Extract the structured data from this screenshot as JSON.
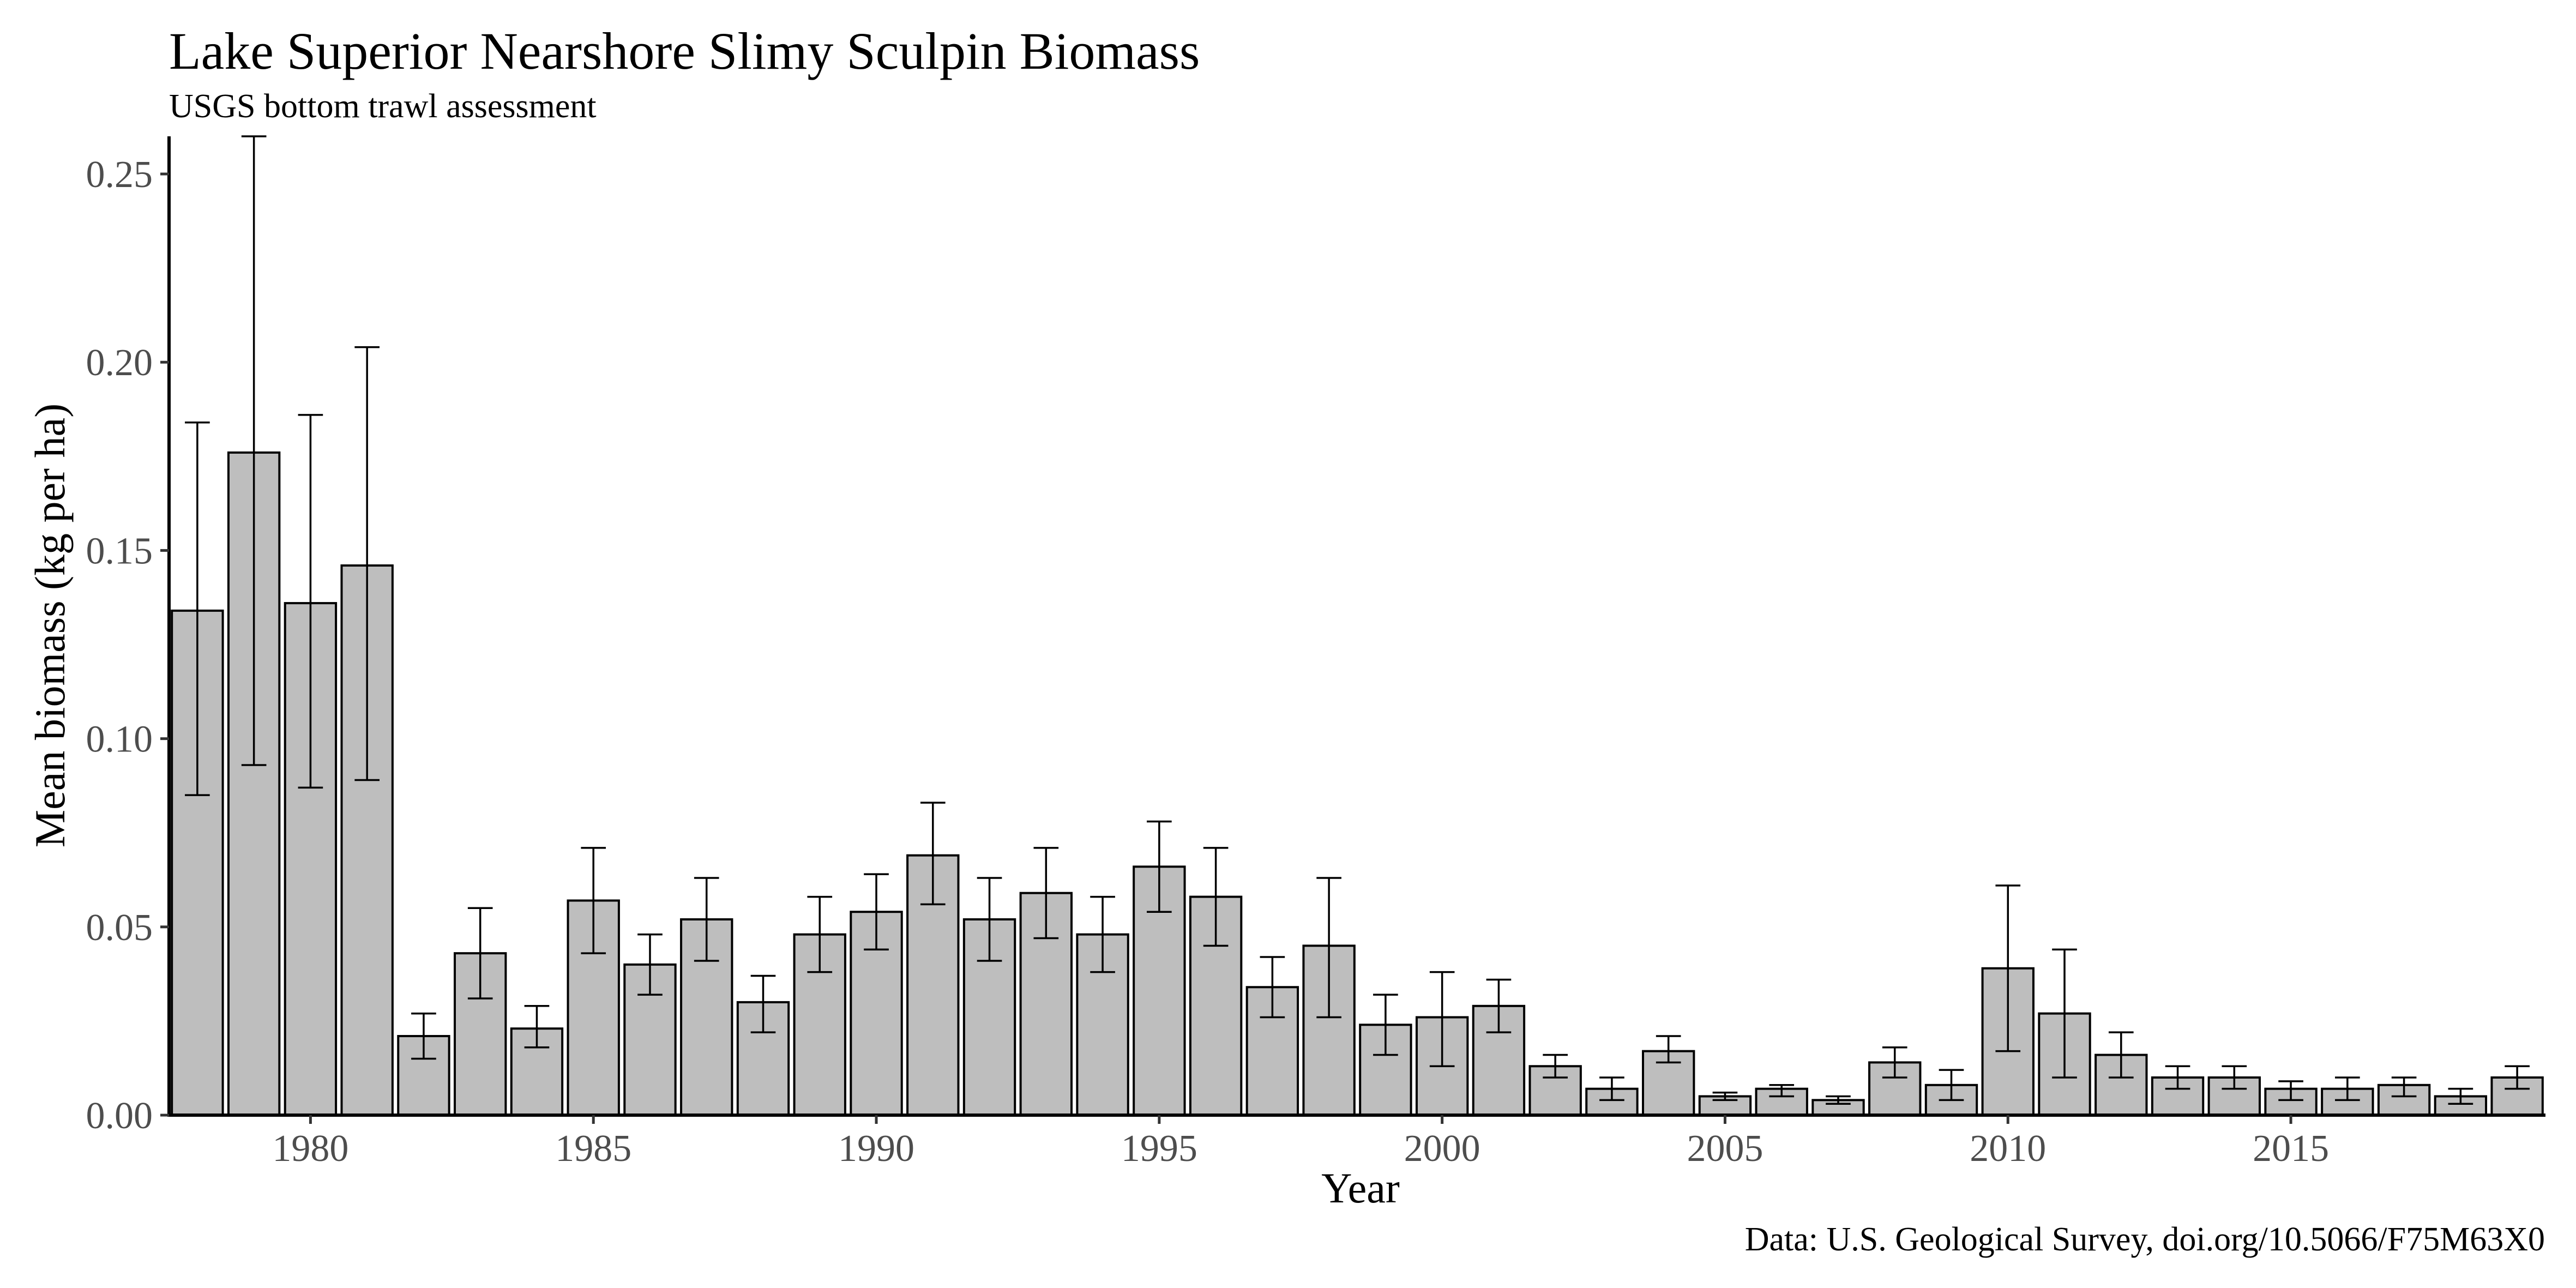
{
  "chart_data": {
    "type": "bar",
    "title": "Lake Superior Nearshore Slimy Sculpin Biomass",
    "subtitle": "USGS bottom trawl assessment",
    "xlabel": "Year",
    "ylabel": "Mean biomass (kg per ha)",
    "caption": "Data: U.S. Geological Survey, doi.org/10.5066/F75M63X0",
    "ylim": [
      0,
      0.26
    ],
    "y_ticks": [
      0.0,
      0.05,
      0.1,
      0.15,
      0.2,
      0.25
    ],
    "y_tick_labels": [
      "0.00",
      "0.05",
      "0.10",
      "0.15",
      "0.20",
      "0.25"
    ],
    "x_ticks": [
      1980,
      1985,
      1990,
      1995,
      2000,
      2005,
      2010,
      2015
    ],
    "x_tick_labels": [
      "1980",
      "1985",
      "1990",
      "1995",
      "2000",
      "2005",
      "2010",
      "2015"
    ],
    "grid": false,
    "bar_fill": "#bebebe",
    "bar_stroke": "#000000",
    "categories": [
      1978,
      1979,
      1980,
      1981,
      1982,
      1983,
      1984,
      1985,
      1986,
      1987,
      1988,
      1989,
      1990,
      1991,
      1992,
      1993,
      1994,
      1995,
      1996,
      1997,
      1998,
      1999,
      2000,
      2001,
      2002,
      2003,
      2004,
      2005,
      2006,
      2007,
      2008,
      2009,
      2010,
      2011,
      2012,
      2013,
      2014,
      2015,
      2016,
      2017,
      2018,
      2019
    ],
    "values": [
      0.134,
      0.176,
      0.136,
      0.146,
      0.021,
      0.043,
      0.023,
      0.057,
      0.04,
      0.052,
      0.03,
      0.048,
      0.054,
      0.069,
      0.052,
      0.059,
      0.048,
      0.066,
      0.058,
      0.034,
      0.045,
      0.024,
      0.026,
      0.029,
      0.013,
      0.007,
      0.017,
      0.005,
      0.007,
      0.004,
      0.014,
      0.008,
      0.039,
      0.027,
      0.016,
      0.01,
      0.01,
      0.007,
      0.007,
      0.008,
      0.005,
      0.01
    ],
    "err_low": [
      0.085,
      0.093,
      0.087,
      0.089,
      0.015,
      0.031,
      0.018,
      0.043,
      0.032,
      0.041,
      0.022,
      0.038,
      0.044,
      0.056,
      0.041,
      0.047,
      0.038,
      0.054,
      0.045,
      0.026,
      0.026,
      0.016,
      0.013,
      0.022,
      0.01,
      0.004,
      0.014,
      0.004,
      0.005,
      0.003,
      0.01,
      0.004,
      0.017,
      0.01,
      0.01,
      0.007,
      0.007,
      0.004,
      0.004,
      0.005,
      0.003,
      0.007
    ],
    "err_high": [
      0.184,
      0.26,
      0.186,
      0.204,
      0.027,
      0.055,
      0.029,
      0.071,
      0.048,
      0.063,
      0.037,
      0.058,
      0.064,
      0.083,
      0.063,
      0.071,
      0.058,
      0.078,
      0.071,
      0.042,
      0.063,
      0.032,
      0.038,
      0.036,
      0.016,
      0.01,
      0.021,
      0.006,
      0.008,
      0.005,
      0.018,
      0.012,
      0.061,
      0.044,
      0.022,
      0.013,
      0.013,
      0.009,
      0.01,
      0.01,
      0.007,
      0.013
    ]
  }
}
